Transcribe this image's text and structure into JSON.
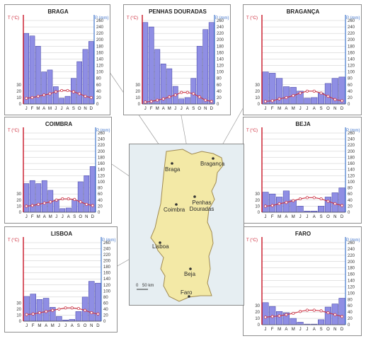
{
  "labels": {
    "t_axis": "T (°C)",
    "p_axis": "P (mm)"
  },
  "colors": {
    "bar": "#8f8ee4",
    "bar_edge": "#3a3aa0",
    "temp": "#cc3344",
    "p_axis": "#4477cc",
    "t_axis": "#cc2233",
    "grid": "#c8c8c8",
    "land": "#f3e9a6",
    "sea": "#e6eef2"
  },
  "map": {
    "scale": "50 km",
    "cities": {
      "braga": "Braga",
      "braganca": "Bragança",
      "penhas": "Penhas Douradas",
      "coimbra": "Coimbra",
      "lisboa": "Lisboa",
      "beja": "Beja",
      "faro": "Faro"
    }
  },
  "chart_data": [
    {
      "type": "bar",
      "title": "BRAGA",
      "categories": [
        "J",
        "F",
        "M",
        "A",
        "M",
        "J",
        "J",
        "A",
        "S",
        "O",
        "N",
        "D"
      ],
      "series": [
        {
          "axis": "P (mm)",
          "type": "bar",
          "values": [
            220,
            212,
            180,
            100,
            106,
            54,
            18,
            24,
            80,
            132,
            170,
            195
          ]
        },
        {
          "axis": "T (°C)",
          "type": "line",
          "values": [
            9,
            10,
            12,
            14,
            16,
            19,
            21,
            21,
            19,
            16,
            12,
            10
          ]
        }
      ],
      "p_ylim": [
        0,
        260
      ],
      "p_ticks": [
        0,
        20,
        40,
        60,
        80,
        100,
        120,
        140,
        160,
        180,
        200,
        220,
        240,
        260
      ],
      "t_ylim": [
        0,
        130
      ],
      "t_ticks": [
        0,
        10,
        20,
        30
      ]
    },
    {
      "type": "bar",
      "title": "PENHAS DOURADAS",
      "categories": [
        "J",
        "F",
        "M",
        "A",
        "M",
        "J",
        "J",
        "A",
        "S",
        "O",
        "N",
        "D"
      ],
      "series": [
        {
          "axis": "P (mm)",
          "type": "bar",
          "values": [
            254,
            240,
            170,
            125,
            110,
            55,
            16,
            20,
            80,
            180,
            232,
            254
          ]
        },
        {
          "axis": "T (°C)",
          "type": "line",
          "values": [
            3,
            4,
            6,
            8,
            11,
            14,
            18,
            18,
            16,
            11,
            6,
            4
          ]
        }
      ],
      "p_ylim": [
        0,
        260
      ],
      "p_ticks": [
        0,
        20,
        40,
        60,
        80,
        100,
        120,
        140,
        160,
        180,
        200,
        220,
        240,
        260
      ],
      "t_ylim": [
        0,
        130
      ],
      "t_ticks": [
        0,
        10,
        20,
        30
      ]
    },
    {
      "type": "bar",
      "title": "BRAGANÇA",
      "categories": [
        "J",
        "F",
        "M",
        "A",
        "M",
        "J",
        "J",
        "A",
        "S",
        "O",
        "N",
        "D"
      ],
      "series": [
        {
          "axis": "P (mm)",
          "type": "bar",
          "values": [
            100,
            96,
            80,
            54,
            52,
            40,
            18,
            20,
            34,
            64,
            80,
            84
          ]
        },
        {
          "axis": "T (°C)",
          "type": "line",
          "values": [
            4,
            5,
            8,
            10,
            13,
            17,
            20,
            20,
            17,
            12,
            7,
            5
          ]
        }
      ],
      "p_ylim": [
        0,
        260
      ],
      "p_ticks": [
        0,
        20,
        40,
        60,
        80,
        100,
        120,
        140,
        160,
        180,
        200,
        220,
        240,
        260
      ],
      "t_ylim": [
        0,
        130
      ],
      "t_ticks": [
        0,
        10,
        20,
        30
      ]
    },
    {
      "type": "bar",
      "title": "COIMBRA",
      "categories": [
        "J",
        "F",
        "M",
        "A",
        "M",
        "J",
        "J",
        "A",
        "S",
        "O",
        "N",
        "D"
      ],
      "series": [
        {
          "axis": "P (mm)",
          "type": "bar",
          "values": [
            94,
            104,
            94,
            104,
            72,
            40,
            12,
            14,
            40,
            100,
            120,
            150
          ]
        },
        {
          "axis": "T (°C)",
          "type": "line",
          "values": [
            10,
            11,
            13,
            15,
            17,
            20,
            22,
            22,
            21,
            17,
            13,
            11
          ]
        }
      ],
      "p_ylim": [
        0,
        260
      ],
      "p_ticks": [
        0,
        20,
        40,
        60,
        80,
        100,
        120,
        140,
        160,
        180,
        200,
        220,
        240,
        260
      ],
      "t_ylim": [
        0,
        130
      ],
      "t_ticks": [
        0,
        10,
        20,
        30
      ]
    },
    {
      "type": "bar",
      "title": "BEJA",
      "categories": [
        "J",
        "F",
        "M",
        "A",
        "M",
        "J",
        "J",
        "A",
        "S",
        "O",
        "N",
        "D"
      ],
      "series": [
        {
          "axis": "P (mm)",
          "type": "bar",
          "values": [
            66,
            60,
            50,
            70,
            40,
            20,
            4,
            4,
            20,
            50,
            64,
            80
          ]
        },
        {
          "axis": "T (°C)",
          "type": "line",
          "values": [
            10,
            11,
            14,
            16,
            19,
            22,
            24,
            24,
            22,
            18,
            14,
            11
          ]
        }
      ],
      "p_ylim": [
        0,
        260
      ],
      "p_ticks": [
        0,
        20,
        40,
        60,
        80,
        100,
        120,
        140,
        160,
        180,
        200,
        220,
        240,
        260
      ],
      "t_ylim": [
        0,
        130
      ],
      "t_ticks": [
        0,
        10,
        20,
        30
      ]
    },
    {
      "type": "bar",
      "title": "LISBOA",
      "categories": [
        "J",
        "F",
        "M",
        "A",
        "M",
        "J",
        "J",
        "A",
        "S",
        "O",
        "N",
        "D"
      ],
      "series": [
        {
          "axis": "P (mm)",
          "type": "bar",
          "values": [
            82,
            90,
            72,
            76,
            46,
            16,
            4,
            6,
            32,
            80,
            132,
            126
          ]
        },
        {
          "axis": "T (°C)",
          "type": "line",
          "values": [
            11,
            12,
            14,
            16,
            18,
            20,
            22,
            22,
            21,
            18,
            14,
            12
          ]
        }
      ],
      "p_ylim": [
        0,
        260
      ],
      "p_ticks": [
        0,
        20,
        40,
        60,
        80,
        100,
        120,
        140,
        160,
        180,
        200,
        220,
        240,
        260
      ],
      "t_ylim": [
        0,
        130
      ],
      "t_ticks": [
        0,
        10,
        20,
        30
      ]
    },
    {
      "type": "bar",
      "title": "FARO",
      "categories": [
        "J",
        "F",
        "M",
        "A",
        "M",
        "J",
        "J",
        "A",
        "S",
        "O",
        "N",
        "D"
      ],
      "series": [
        {
          "axis": "P (mm)",
          "type": "bar",
          "values": [
            70,
            58,
            42,
            38,
            20,
            8,
            2,
            2,
            16,
            56,
            66,
            84
          ]
        },
        {
          "axis": "T (°C)",
          "type": "line",
          "values": [
            12,
            13,
            14,
            16,
            18,
            21,
            23,
            23,
            22,
            19,
            16,
            13
          ]
        }
      ],
      "p_ylim": [
        0,
        260
      ],
      "p_ticks": [
        0,
        20,
        40,
        60,
        80,
        100,
        120,
        140,
        160,
        180,
        200,
        220,
        240,
        260
      ],
      "t_ylim": [
        0,
        130
      ],
      "t_ticks": [
        0,
        10,
        20,
        30
      ]
    }
  ]
}
